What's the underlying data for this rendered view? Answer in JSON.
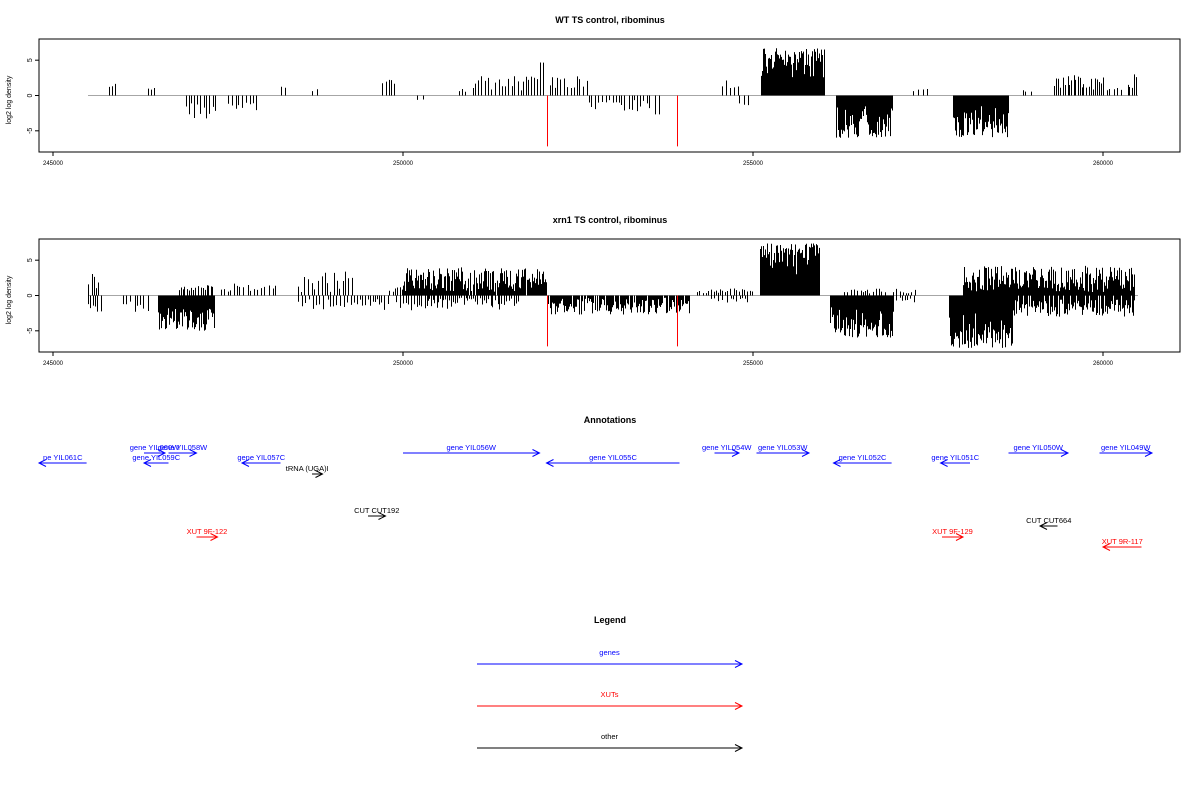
{
  "chart_data": [
    {
      "type": "bar",
      "title": "WT TS control, ribominus",
      "ylabel": "log2 log density",
      "xlim": [
        244800,
        261100
      ],
      "ylim": [
        -8,
        8
      ],
      "xticks": [
        245000,
        250000,
        255000,
        260000
      ],
      "yticks": [
        -5,
        0,
        5
      ],
      "baseline": [
        245500,
        260500
      ],
      "highlight_color": "#ff0000",
      "highlights": [
        {
          "x": 252050,
          "y": -7.2
        },
        {
          "x": 253920,
          "y": -7.2
        }
      ],
      "segments": [
        {
          "x0": 245800,
          "x1": 245900,
          "ymin": 1.0,
          "ymax": 1.9,
          "sign": 1,
          "gap": 60,
          "seed": 11
        },
        {
          "x0": 246350,
          "x1": 246450,
          "ymin": 0.8,
          "ymax": 1.5,
          "sign": 1,
          "gap": 60,
          "seed": 12
        },
        {
          "x0": 246900,
          "x1": 247350,
          "ymin": 1.0,
          "ymax": 3.3,
          "sign": -1,
          "gap": 45,
          "seed": 13
        },
        {
          "x0": 247500,
          "x1": 247950,
          "ymin": 0.8,
          "ymax": 2.3,
          "sign": -1,
          "gap": 60,
          "seed": 14
        },
        {
          "x0": 248250,
          "x1": 248350,
          "ymin": 1.0,
          "ymax": 2.0,
          "sign": 1,
          "gap": 60,
          "seed": 15
        },
        {
          "x0": 248700,
          "x1": 248800,
          "ymin": 0.5,
          "ymax": 1.0,
          "sign": 1,
          "gap": 60,
          "seed": 16
        },
        {
          "x0": 249700,
          "x1": 249900,
          "ymin": 1.5,
          "ymax": 2.5,
          "sign": 1,
          "gap": 45,
          "seed": 17
        },
        {
          "x0": 250200,
          "x1": 250300,
          "ymin": 0.5,
          "ymax": 1.0,
          "sign": -1,
          "gap": 60,
          "seed": 18
        },
        {
          "x0": 250800,
          "x1": 250900,
          "ymin": 0.5,
          "ymax": 1.0,
          "sign": 1,
          "gap": 60,
          "seed": 19
        },
        {
          "x0": 251000,
          "x1": 251950,
          "ymin": 0.5,
          "ymax": 2.8,
          "sign": 1,
          "gap": 42,
          "seed": 20
        },
        {
          "x0": 251950,
          "x1": 252050,
          "ymin": 4.6,
          "ymax": 4.9,
          "sign": 1,
          "gap": 60,
          "seed": 21
        },
        {
          "x0": 252100,
          "x1": 252650,
          "ymin": 1.0,
          "ymax": 2.8,
          "sign": 1,
          "gap": 40,
          "seed": 22
        },
        {
          "x0": 252650,
          "x1": 253550,
          "ymin": 0.5,
          "ymax": 2.5,
          "sign": -1,
          "gap": 45,
          "seed": 23
        },
        {
          "x0": 253600,
          "x1": 253700,
          "ymin": 2.5,
          "ymax": 3.2,
          "sign": -1,
          "gap": 60,
          "seed": 24
        },
        {
          "x0": 254550,
          "x1": 254800,
          "ymin": 1.0,
          "ymax": 2.2,
          "sign": 1,
          "gap": 60,
          "seed": 25
        },
        {
          "x0": 254800,
          "x1": 254950,
          "ymin": 1.0,
          "ymax": 1.5,
          "sign": -1,
          "gap": 60,
          "seed": 26
        },
        {
          "x0": 255120,
          "x1": 256010,
          "ymin": 1.5,
          "ymax": 6.7,
          "sign": 1,
          "gap": 6,
          "seed": 27
        },
        {
          "x0": 256180,
          "x1": 256980,
          "ymin": 1.5,
          "ymax": 6.0,
          "sign": -1,
          "gap": 8,
          "seed": 28
        },
        {
          "x0": 257280,
          "x1": 257500,
          "ymin": 0.5,
          "ymax": 1.0,
          "sign": 1,
          "gap": 60,
          "seed": 29
        },
        {
          "x0": 257850,
          "x1": 258650,
          "ymin": 1.5,
          "ymax": 6.0,
          "sign": -1,
          "gap": 8,
          "seed": 30
        },
        {
          "x0": 258850,
          "x1": 259000,
          "ymin": 0.5,
          "ymax": 1.5,
          "sign": 1,
          "gap": 60,
          "seed": 31
        },
        {
          "x0": 259300,
          "x1": 260000,
          "ymin": 0.8,
          "ymax": 3.0,
          "sign": 1,
          "gap": 30,
          "seed": 32
        },
        {
          "x0": 260050,
          "x1": 260300,
          "ymin": 0.5,
          "ymax": 1.5,
          "sign": 1,
          "gap": 50,
          "seed": 33
        },
        {
          "x0": 260350,
          "x1": 260500,
          "ymin": 1.0,
          "ymax": 3.0,
          "sign": 1,
          "gap": 30,
          "seed": 34
        }
      ]
    },
    {
      "type": "bar",
      "title": "xrn1 TS control, ribominus",
      "ylabel": "log2 log density",
      "xlim": [
        244800,
        261100
      ],
      "ylim": [
        -8,
        8
      ],
      "xticks": [
        245000,
        250000,
        255000,
        260000
      ],
      "yticks": [
        -5,
        0,
        5
      ],
      "baseline": [
        245500,
        260500
      ],
      "highlight_color": "#ff0000",
      "highlights": [
        {
          "x": 252050,
          "y": -7.2
        },
        {
          "x": 253920,
          "y": -7.2
        }
      ],
      "segments": [
        {
          "x0": 245500,
          "x1": 245700,
          "ymin": 1.0,
          "ymax": 3.3,
          "sign": 1,
          "gap": 40,
          "seed": 41
        },
        {
          "x0": 245500,
          "x1": 245700,
          "ymin": 0.8,
          "ymax": 2.5,
          "sign": -1,
          "gap": 45,
          "seed": 42
        },
        {
          "x0": 246000,
          "x1": 246400,
          "ymin": 0.8,
          "ymax": 2.5,
          "sign": -1,
          "gap": 60,
          "seed": 43
        },
        {
          "x0": 246500,
          "x1": 247300,
          "ymin": 1.5,
          "ymax": 5.0,
          "sign": -1,
          "gap": 10,
          "seed": 44
        },
        {
          "x0": 246800,
          "x1": 247300,
          "ymin": 0.5,
          "ymax": 1.5,
          "sign": 1,
          "gap": 30,
          "seed": 45
        },
        {
          "x0": 247400,
          "x1": 248200,
          "ymin": 0.5,
          "ymax": 1.8,
          "sign": 1,
          "gap": 50,
          "seed": 46
        },
        {
          "x0": 248500,
          "x1": 249300,
          "ymin": 0.5,
          "ymax": 3.5,
          "sign": 1,
          "gap": 45,
          "seed": 47
        },
        {
          "x0": 248500,
          "x1": 249300,
          "ymin": 0.5,
          "ymax": 2.0,
          "sign": -1,
          "gap": 50,
          "seed": 48
        },
        {
          "x0": 249300,
          "x1": 249800,
          "ymin": 0.5,
          "ymax": 2.5,
          "sign": -1,
          "gap": 40,
          "seed": 49
        },
        {
          "x0": 249800,
          "x1": 250100,
          "ymin": 0.5,
          "ymax": 1.2,
          "sign": 1,
          "gap": 40,
          "seed": 50
        },
        {
          "x0": 249900,
          "x1": 250350,
          "ymin": 0.5,
          "ymax": 2.2,
          "sign": -1,
          "gap": 40,
          "seed": 51
        },
        {
          "x0": 250000,
          "x1": 252050,
          "ymin": 0.5,
          "ymax": 4.0,
          "sign": 1,
          "gap": 12,
          "seed": 52
        },
        {
          "x0": 250350,
          "x1": 251650,
          "ymin": 0.3,
          "ymax": 2.0,
          "sign": -1,
          "gap": 30,
          "seed": 53
        },
        {
          "x0": 252050,
          "x1": 254100,
          "ymin": 0.3,
          "ymax": 2.7,
          "sign": -1,
          "gap": 15,
          "seed": 54
        },
        {
          "x0": 254200,
          "x1": 255000,
          "ymin": 0.3,
          "ymax": 1.0,
          "sign": 1,
          "gap": 40,
          "seed": 55
        },
        {
          "x0": 254400,
          "x1": 254950,
          "ymin": 0.3,
          "ymax": 1.0,
          "sign": -1,
          "gap": 50,
          "seed": 56
        },
        {
          "x0": 255100,
          "x1": 255950,
          "ymin": 1.5,
          "ymax": 7.5,
          "sign": 1,
          "gap": 5,
          "seed": 57
        },
        {
          "x0": 256100,
          "x1": 257000,
          "ymin": 1.5,
          "ymax": 6.0,
          "sign": -1,
          "gap": 6,
          "seed": 58
        },
        {
          "x0": 256300,
          "x1": 256900,
          "ymin": 0.3,
          "ymax": 1.0,
          "sign": 1,
          "gap": 40,
          "seed": 59
        },
        {
          "x0": 257000,
          "x1": 257350,
          "ymin": 0.3,
          "ymax": 1.0,
          "sign": 1,
          "gap": 40,
          "seed": 60
        },
        {
          "x0": 257000,
          "x1": 257350,
          "ymin": 0.3,
          "ymax": 1.0,
          "sign": -1,
          "gap": 40,
          "seed": 61
        },
        {
          "x0": 257800,
          "x1": 258700,
          "ymin": 1.5,
          "ymax": 7.5,
          "sign": -1,
          "gap": 5,
          "seed": 62
        },
        {
          "x0": 258000,
          "x1": 260450,
          "ymin": 0.5,
          "ymax": 4.2,
          "sign": 1,
          "gap": 10,
          "seed": 63
        },
        {
          "x0": 258700,
          "x1": 260450,
          "ymin": 0.5,
          "ymax": 3.0,
          "sign": -1,
          "gap": 15,
          "seed": 64
        }
      ]
    }
  ],
  "annotations": {
    "title": "Annotations",
    "xlim": [
      244800,
      261100
    ],
    "items": [
      {
        "label": "ne YIL061C",
        "start": 244800,
        "end": 245480,
        "dir": -1,
        "row": "gene_b",
        "color": "#0000ff",
        "label_offset": 0
      },
      {
        "label": "gene YIL060W",
        "start": 246300,
        "end": 246600,
        "dir": 1,
        "row": "gene_a",
        "color": "#0000ff",
        "label_offset": 0
      },
      {
        "label": "gene YIL058W",
        "start": 246650,
        "end": 247050,
        "dir": 1,
        "row": "gene_a2",
        "color": "#0000ff",
        "label_offset": 0
      },
      {
        "label": "gene YIL059C",
        "start": 246300,
        "end": 246650,
        "dir": -1,
        "row": "gene_b",
        "color": "#0000ff",
        "label_offset": 0
      },
      {
        "label": "gene YIL057C",
        "start": 247700,
        "end": 248250,
        "dir": -1,
        "row": "gene_b",
        "color": "#0000ff",
        "label_offset": 0
      },
      {
        "label": "tRNA (UGA)I",
        "start": 248700,
        "end": 248850,
        "dir": 1,
        "row": "other_a",
        "color": "#000000",
        "label_offset": -10
      },
      {
        "label": "gene YIL056W",
        "start": 250000,
        "end": 251950,
        "dir": 1,
        "row": "gene_a",
        "color": "#0000ff",
        "label_offset": 0
      },
      {
        "label": "gene YIL055C",
        "start": 252050,
        "end": 253950,
        "dir": -1,
        "row": "gene_b",
        "color": "#0000ff",
        "label_offset": 0
      },
      {
        "label": "gene YIL054W",
        "start": 254450,
        "end": 254800,
        "dir": 1,
        "row": "gene_a",
        "color": "#0000ff",
        "label_offset": 0
      },
      {
        "label": "gene YIL053W",
        "start": 255050,
        "end": 255800,
        "dir": 1,
        "row": "gene_a",
        "color": "#0000ff",
        "label_offset": 0
      },
      {
        "label": "gene YIL052C",
        "start": 256150,
        "end": 256980,
        "dir": -1,
        "row": "gene_b",
        "color": "#0000ff",
        "label_offset": 0
      },
      {
        "label": "gene YIL051C",
        "start": 257680,
        "end": 258100,
        "dir": -1,
        "row": "gene_b",
        "color": "#0000ff",
        "label_offset": 0
      },
      {
        "label": "gene YIL050W",
        "start": 258650,
        "end": 259500,
        "dir": 1,
        "row": "gene_a",
        "color": "#0000ff",
        "label_offset": 0
      },
      {
        "label": "gene YIL049W",
        "start": 259950,
        "end": 260700,
        "dir": 1,
        "row": "gene_a",
        "color": "#0000ff",
        "label_offset": 0
      },
      {
        "label": "CUT CUT192",
        "start": 249500,
        "end": 249750,
        "dir": 1,
        "row": "other_b",
        "color": "#000000",
        "label_offset": 0
      },
      {
        "label": "CUT CUT664",
        "start": 259100,
        "end": 259350,
        "dir": -1,
        "row": "other_c",
        "color": "#000000",
        "label_offset": 0
      },
      {
        "label": "XUT 9F-122",
        "start": 247050,
        "end": 247350,
        "dir": 1,
        "row": "xut_a",
        "color": "#ff0000",
        "label_offset": 0
      },
      {
        "label": "XUT 9F-129",
        "start": 257700,
        "end": 258000,
        "dir": 1,
        "row": "xut_a",
        "color": "#ff0000",
        "label_offset": 0
      },
      {
        "label": "XUT 9R-117",
        "start": 260000,
        "end": 260550,
        "dir": -1,
        "row": "xut_b",
        "color": "#ff0000",
        "label_offset": 0
      }
    ]
  },
  "legend": {
    "title": "Legend",
    "entries": [
      {
        "label": "genes",
        "color": "#0000ff"
      },
      {
        "label": "XUTs",
        "color": "#ff0000"
      },
      {
        "label": "other",
        "color": "#000000"
      }
    ]
  }
}
